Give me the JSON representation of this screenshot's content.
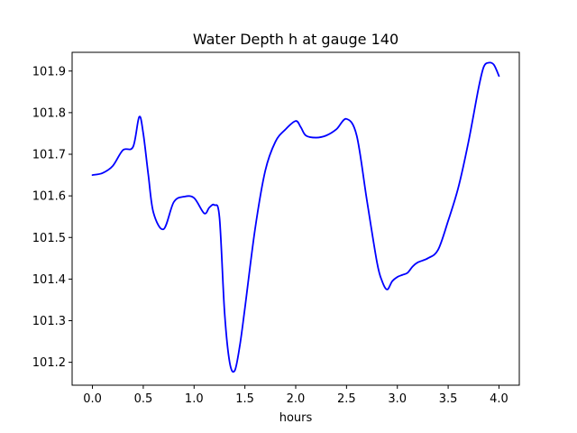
{
  "chart_data": {
    "type": "line",
    "title": "Water Depth h at gauge 140",
    "xlabel": "hours",
    "ylabel": "",
    "xlim": [
      -0.2,
      4.2
    ],
    "ylim": [
      101.145,
      101.945
    ],
    "xticks": [
      0.0,
      0.5,
      1.0,
      1.5,
      2.0,
      2.5,
      3.0,
      3.5,
      4.0
    ],
    "xtick_labels": [
      "0.0",
      "0.5",
      "1.0",
      "1.5",
      "2.0",
      "2.5",
      "3.0",
      "3.5",
      "4.0"
    ],
    "yticks": [
      101.2,
      101.3,
      101.4,
      101.5,
      101.6,
      101.7,
      101.8,
      101.9
    ],
    "ytick_labels": [
      "101.2",
      "101.3",
      "101.4",
      "101.5",
      "101.6",
      "101.7",
      "101.8",
      "101.9"
    ],
    "grid": false,
    "colors": {
      "series": "#0000ff",
      "axes": "#000000",
      "background": "#ffffff"
    },
    "series": [
      {
        "x": [
          0.0,
          0.1,
          0.2,
          0.3,
          0.4,
          0.46,
          0.5,
          0.55,
          0.6,
          0.7,
          0.8,
          0.9,
          1.0,
          1.1,
          1.15,
          1.2,
          1.25,
          1.3,
          1.35,
          1.4,
          1.45,
          1.5,
          1.6,
          1.7,
          1.8,
          1.9,
          2.0,
          2.05,
          2.1,
          2.2,
          2.3,
          2.4,
          2.5,
          2.6,
          2.7,
          2.8,
          2.85,
          2.9,
          2.95,
          3.0,
          3.05,
          3.1,
          3.15,
          3.2,
          3.3,
          3.4,
          3.5,
          3.6,
          3.7,
          3.8,
          3.85,
          3.9,
          3.95,
          4.0
        ],
        "y": [
          101.65,
          101.655,
          101.672,
          101.71,
          101.718,
          101.79,
          101.75,
          101.65,
          101.56,
          101.52,
          101.585,
          101.598,
          101.595,
          101.558,
          101.572,
          101.578,
          101.548,
          101.32,
          101.2,
          101.18,
          101.24,
          101.33,
          101.52,
          101.66,
          101.73,
          101.76,
          101.78,
          101.765,
          101.745,
          101.74,
          101.745,
          101.76,
          101.785,
          101.745,
          101.59,
          101.44,
          101.395,
          101.375,
          101.395,
          101.405,
          101.41,
          101.415,
          101.43,
          101.44,
          101.45,
          101.47,
          101.54,
          101.62,
          101.73,
          101.86,
          101.91,
          101.92,
          101.915,
          101.888
        ]
      }
    ]
  }
}
